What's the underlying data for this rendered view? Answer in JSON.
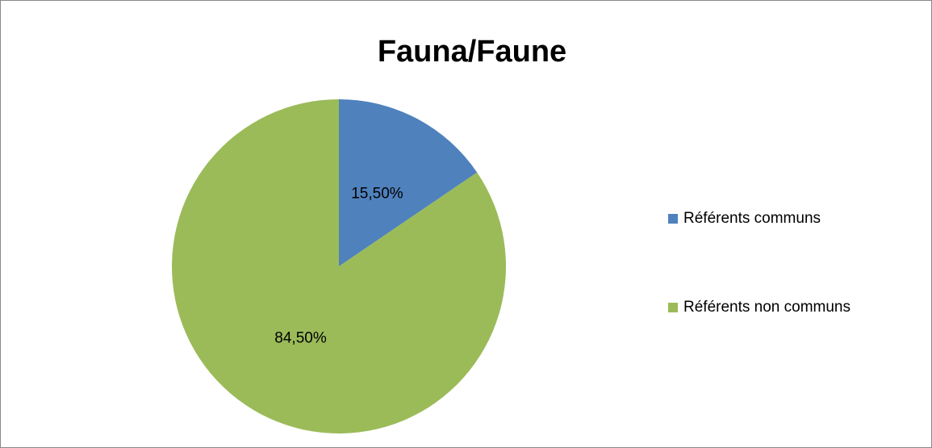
{
  "chart_data": {
    "type": "pie",
    "title": "Fauna/Faune",
    "categories": [
      "Référents communs",
      "Référents non communs"
    ],
    "values": [
      15.5,
      84.5
    ],
    "value_labels": [
      "15,50%",
      "84,50%"
    ],
    "colors": [
      "#4f81bd",
      "#9bbb59"
    ],
    "legend": "right"
  }
}
